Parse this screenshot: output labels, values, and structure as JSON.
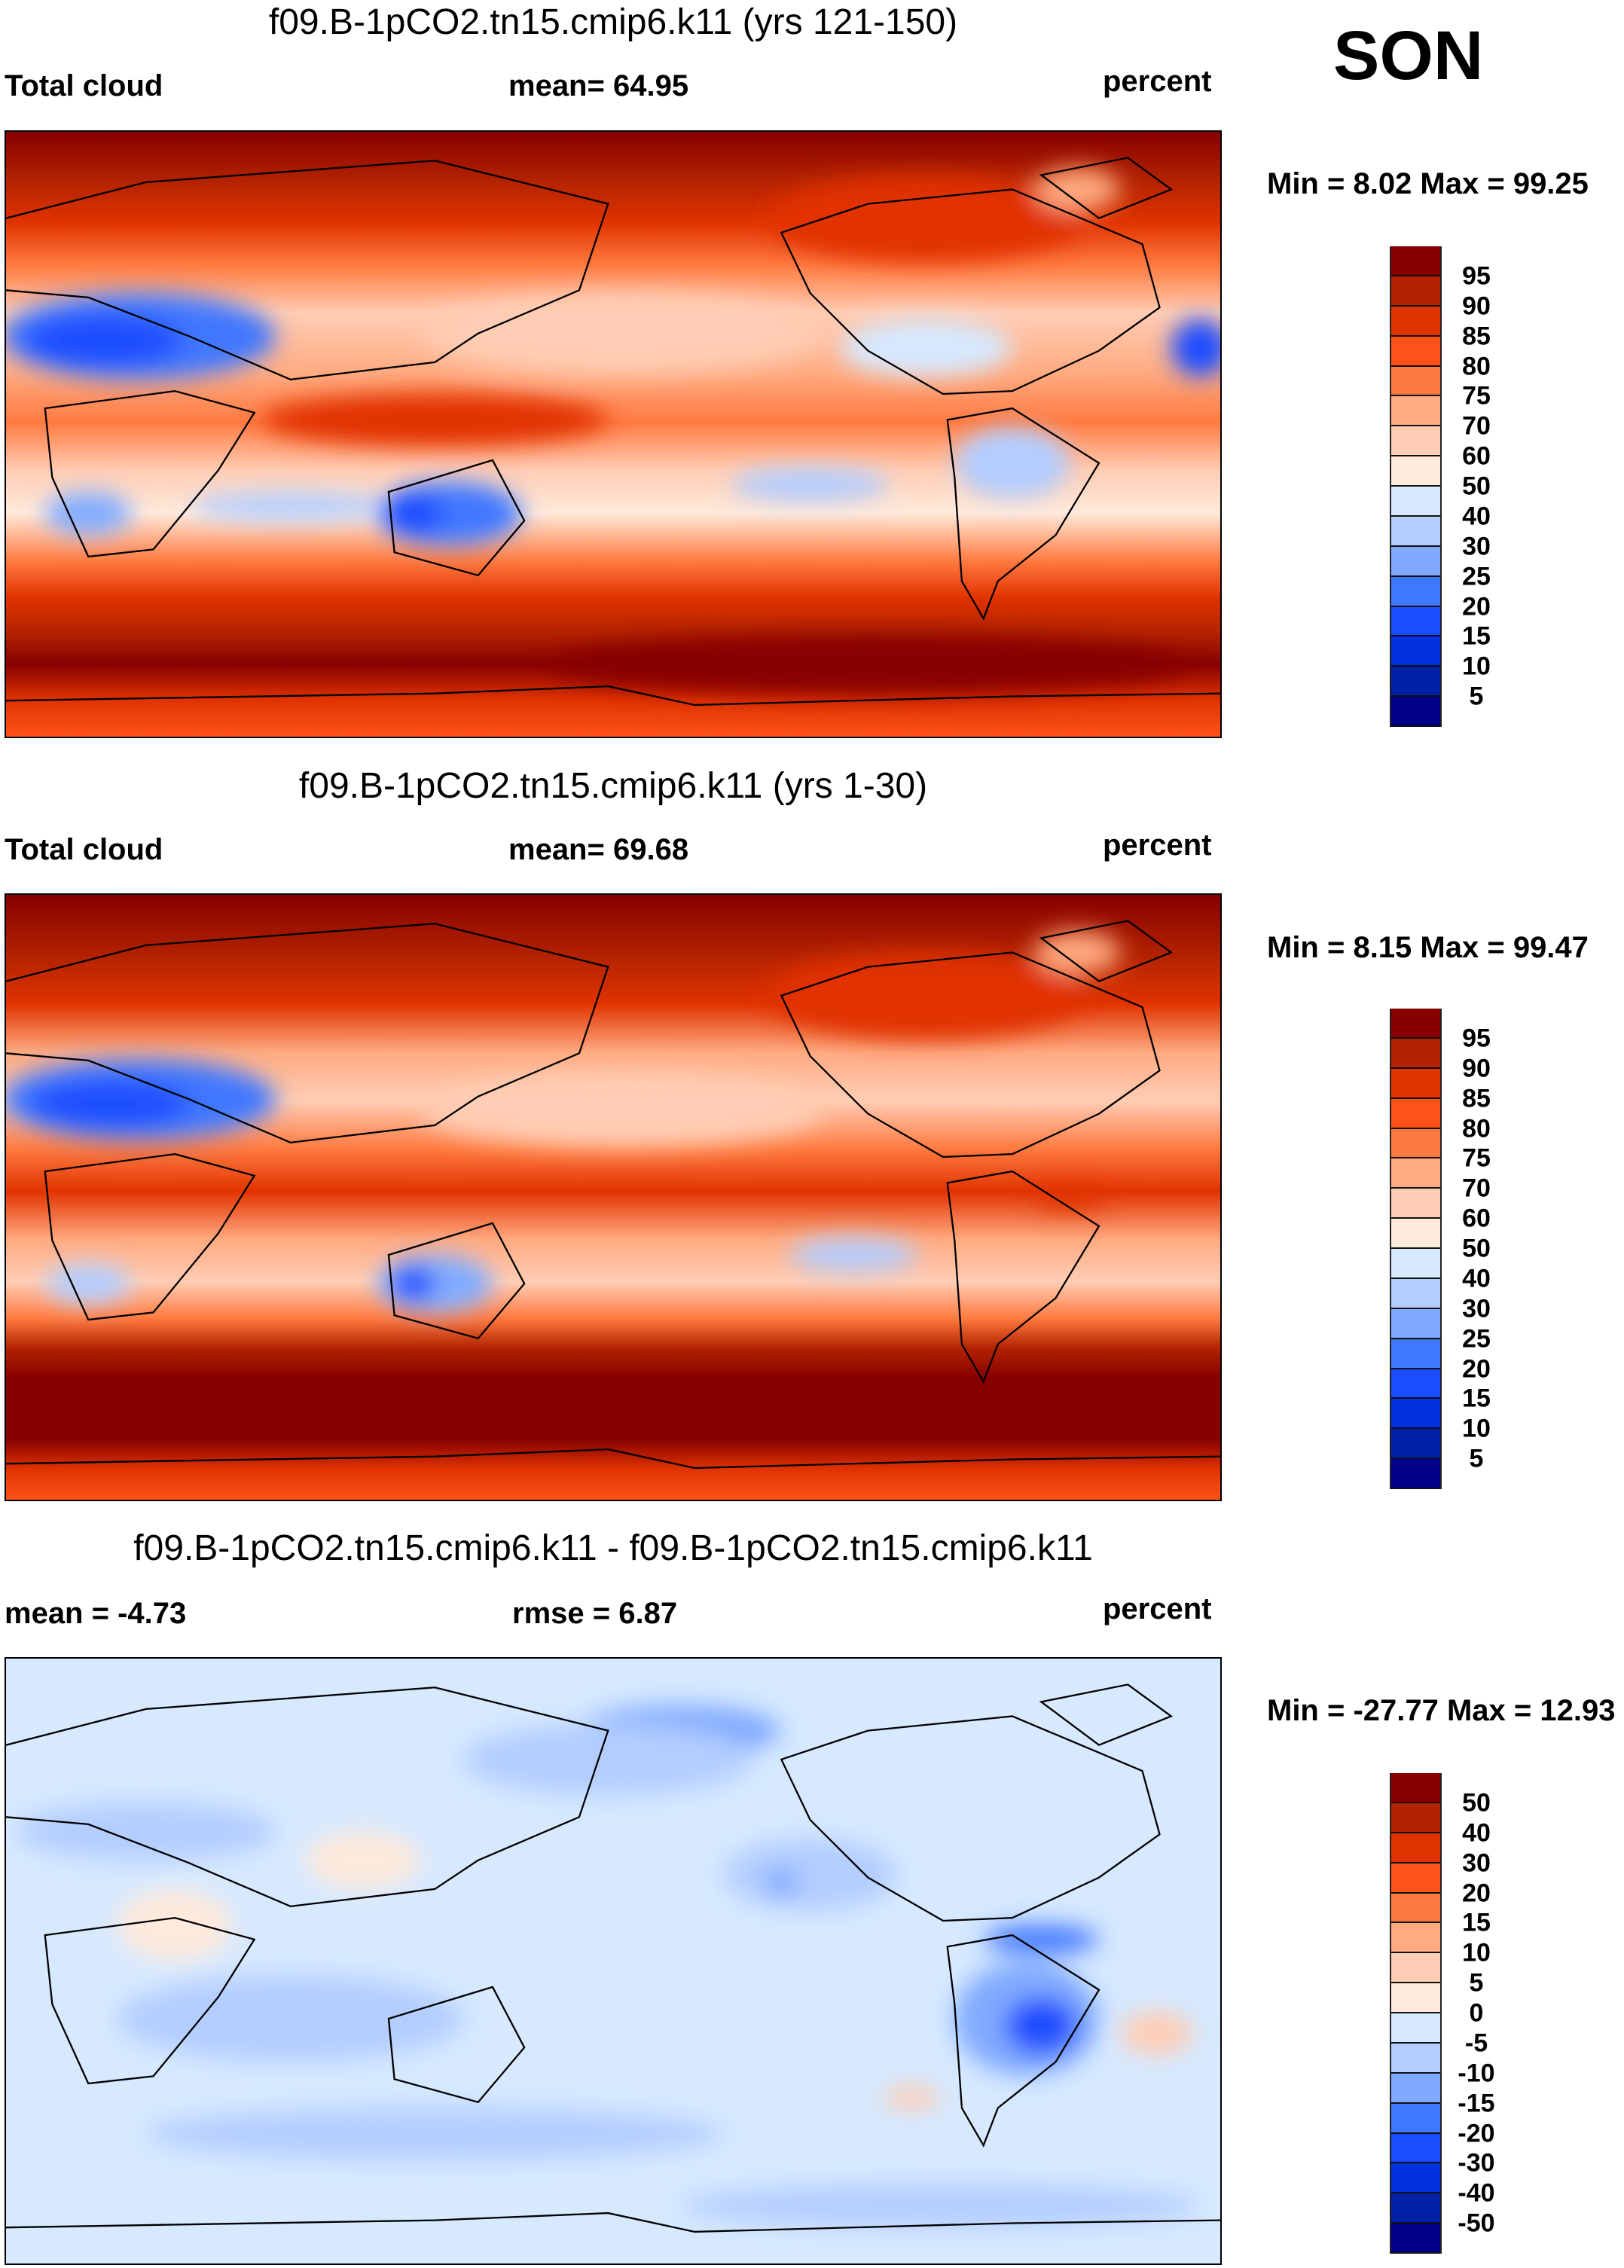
{
  "season": "SON",
  "colors": [
    "#870000",
    "#b22200",
    "#e13300",
    "#ff5219",
    "#ff7a40",
    "#ffaa80",
    "#ffcdb4",
    "#ffeadb",
    "#d6e9ff",
    "#b3cdff",
    "#80aaff",
    "#4077ff",
    "#1a4dff",
    "#0030e0",
    "#0020a8",
    "#000088"
  ],
  "chart_data": [
    {
      "type": "heatmap",
      "title": "f09.B-1pCO2.tn15.cmip6.k11 (yrs 121-150)",
      "left_label": "Total cloud",
      "center_label": "mean=  64.95",
      "units": "percent",
      "min_max": "Min =   8.02 Max =  99.25",
      "min": 8.02,
      "max": 99.25,
      "mean": 64.95,
      "levels": [
        "95",
        "90",
        "85",
        "80",
        "75",
        "70",
        "60",
        "50",
        "40",
        "30",
        "25",
        "20",
        "15",
        "10",
        "5"
      ]
    },
    {
      "type": "heatmap",
      "title": "f09.B-1pCO2.tn15.cmip6.k11 (yrs 1-30)",
      "left_label": "Total cloud",
      "center_label": "mean=  69.68",
      "units": "percent",
      "min_max": "Min =   8.15 Max =  99.47",
      "min": 8.15,
      "max": 99.47,
      "mean": 69.68,
      "levels": [
        "95",
        "90",
        "85",
        "80",
        "75",
        "70",
        "60",
        "50",
        "40",
        "30",
        "25",
        "20",
        "15",
        "10",
        "5"
      ]
    },
    {
      "type": "heatmap",
      "title": "f09.B-1pCO2.tn15.cmip6.k11 - f09.B-1pCO2.tn15.cmip6.k11",
      "left_label": "mean =  -4.73",
      "center_label": "rmse =    6.87",
      "units": "percent",
      "min_max": "Min = -27.77 Max =  12.93",
      "min": -27.77,
      "max": 12.93,
      "mean": -4.73,
      "rmse": 6.87,
      "levels": [
        "50",
        "40",
        "30",
        "20",
        "15",
        "10",
        "5",
        "0",
        "-5",
        "-10",
        "-15",
        "-20",
        "-30",
        "-40",
        "-50"
      ]
    }
  ]
}
